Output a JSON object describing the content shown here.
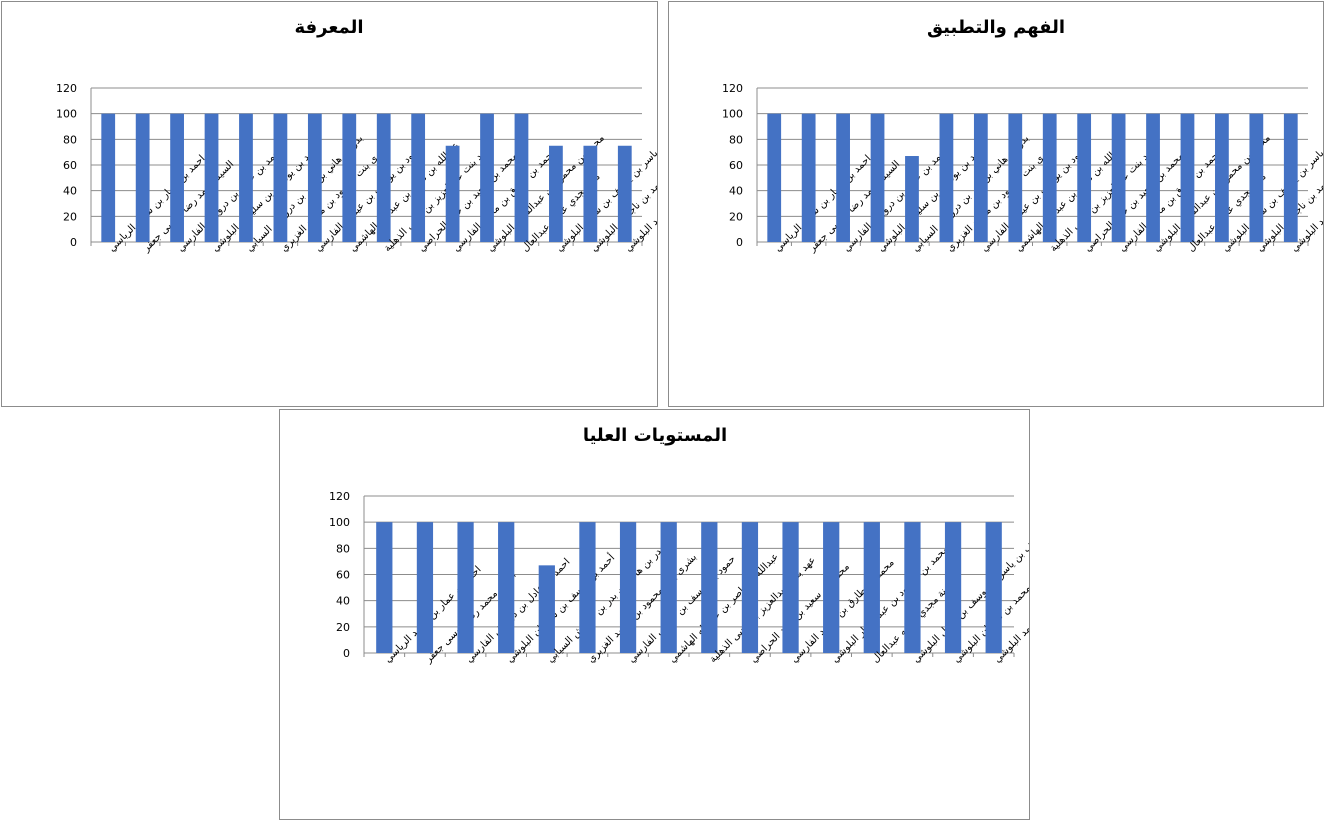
{
  "bar_color": "#4472C4",
  "grid_color": "#8C8C8C",
  "chart_data": [
    {
      "type": "bar",
      "title": "المعرفة",
      "ylim": [
        0,
        120
      ],
      "yticks": [
        0,
        20,
        40,
        60,
        80,
        100,
        120
      ],
      "grid": true,
      "legend": "none",
      "categories": [
        "احمد بن عمار بن سعيد الرياسي",
        "السيد محمد رضا موسى جعفر",
        "احمد بن عادل بن درويش الفارسي",
        "أحمد بن يوسف بن سليمان البلوشي",
        "بدر بن هاني بن بدر بن درويش السيابي",
        "بشرى بنت محمود بن محمد الغزيري",
        "حمود بن يوسف بن عيسى الفارسي",
        "عبدالله بن ناصر بن عبدالله الهاشمي",
        "عهد بنت عبدالعزيز بن يحيى الذهلية",
        "محمد بن سعيد بن حمد الحراصي",
        "محمد بن طارق بن محمد الفارسي",
        "محمد بن محمود بن عبدالستار البلوشي",
        "منة مجدي عطيه عبدالعال",
        "يوسف بن ياسر بن يوسف بن سبيل البلوشي",
        "صلاح بن أيوب بن محمد بن ناجمان البلوشي",
        "عمار بن برويز بن محمد البلوشي"
      ],
      "values": [
        100,
        100,
        100,
        100,
        100,
        100,
        100,
        100,
        100,
        100,
        75,
        100,
        100,
        75,
        75,
        75
      ]
    },
    {
      "type": "bar",
      "title": "الفهم والتطبيق",
      "ylim": [
        0,
        120
      ],
      "yticks": [
        0,
        20,
        40,
        60,
        80,
        100,
        120
      ],
      "grid": true,
      "legend": "none",
      "categories": [
        "احمد بن عمار بن سعيد الرياسي",
        "السيد محمد رضا موسى جعفر",
        "احمد بن عادل بن درويش الفارسي",
        "أحمد بن يوسف بن سليمان البلوشي",
        "بدر بن هاني بن بدر بن درويش السيابي",
        "بشرى بنت محمود بن محمد الغزيري",
        "حمود بن يوسف بن عيسى الفارسي",
        "عبدالله بن ناصر بن عبدالله الهاشمي",
        "عهد بنت عبدالعزيز بن يحيى الذهلية",
        "محمد بن سعيد بن حمد الحراصي",
        "محمد بن طارق بن محمد الفارسي",
        "محمد بن محمود بن عبدالستار البلوشي",
        "منة مجدي عطيه عبدالعال",
        "يوسف بن ياسر بن يوسف بن سبيل البلوشي",
        "صلاح بن أيوب بن محمد بن ناجمان البلوشي",
        "عمار بن برويز بن محمد البلوشي"
      ],
      "values": [
        100,
        100,
        100,
        100,
        67,
        100,
        100,
        100,
        100,
        100,
        100,
        100,
        100,
        100,
        100,
        100
      ]
    },
    {
      "type": "bar",
      "title": "المستويات العليا",
      "ylim": [
        0,
        120
      ],
      "yticks": [
        0,
        20,
        40,
        60,
        80,
        100,
        120
      ],
      "grid": true,
      "legend": "none",
      "categories": [
        "احمد بن عمار بن سعيد الرياسي",
        "السيد محمد رضا موسى جعفر",
        "احمد بن عادل بن درويش الفارسي",
        "أحمد بن يوسف بن سليمان البلوشي",
        "بدر بن هاني بن بدر بن درويش السيابي",
        "بشرى بنت محمود بن محمد الغزيري",
        "حمود بن يوسف بن عيسى الفارسي",
        "عبدالله بن ناصر بن عبدالله الهاشمي",
        "عهد بنت عبدالعزيز بن يحيى الذهلية",
        "محمد بن سعيد بن حمد الحراصي",
        "محمد بن طارق بن محمد الفارسي",
        "محمد بن محمود بن عبدالستار البلوشي",
        "منة مجدي عطيه عبدالعال",
        "يوسف بن ياسر بن يوسف بن سبيل البلوشي",
        "صلاح بن أيوب بن محمد بن ناجمان البلوشي",
        "عمار بن برويز بن محمد البلوشي"
      ],
      "values": [
        100,
        100,
        100,
        100,
        67,
        100,
        100,
        100,
        100,
        100,
        100,
        100,
        100,
        100,
        100,
        100
      ]
    }
  ]
}
